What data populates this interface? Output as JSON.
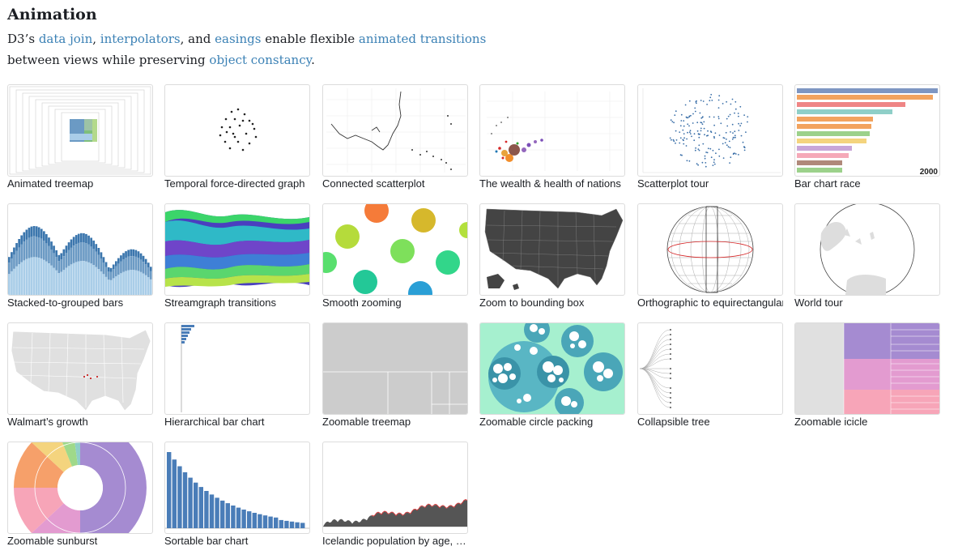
{
  "section": {
    "title": "Animation",
    "intro": {
      "t1": "D3’s ",
      "link_data_join": "data join",
      "t2": ", ",
      "link_interpolators": "interpolators",
      "t3": ", and ",
      "link_easings": "easings",
      "t4": " enable flexible ",
      "link_animated_transitions": "animated transitions",
      "t5": " between views while preserving ",
      "link_object_constancy": "object constancy",
      "t6": "."
    }
  },
  "colors": {
    "link": "#3b81b5",
    "text": "#1b1e23",
    "border": "#dcdcdc"
  },
  "cards": [
    {
      "label": "Animated treemap"
    },
    {
      "label": "Temporal force-directed graph"
    },
    {
      "label": "Connected scatterplot"
    },
    {
      "label": "The wealth & health of nations"
    },
    {
      "label": "Scatterplot tour"
    },
    {
      "label": "Bar chart race",
      "year": "2000"
    },
    {
      "label": "Stacked-to-grouped bars"
    },
    {
      "label": "Streamgraph transitions"
    },
    {
      "label": "Smooth zooming"
    },
    {
      "label": "Zoom to bounding box"
    },
    {
      "label": "Orthographic to equirectangular"
    },
    {
      "label": "World tour"
    },
    {
      "label": "Walmart’s growth"
    },
    {
      "label": "Hierarchical bar chart"
    },
    {
      "label": "Zoomable treemap"
    },
    {
      "label": "Zoomable circle packing"
    },
    {
      "label": "Collapsible tree"
    },
    {
      "label": "Zoomable icicle"
    },
    {
      "label": "Zoomable sunburst"
    },
    {
      "label": "Sortable bar chart"
    },
    {
      "label": "Icelandic population by age, …"
    }
  ]
}
